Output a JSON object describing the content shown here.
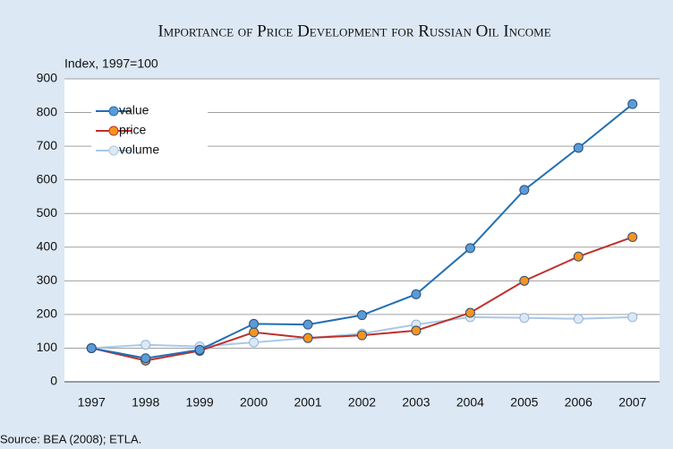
{
  "chart_data": {
    "type": "line",
    "title": "Importance of Price Development for Russian Oil Income",
    "y_label": "Index, 1997=100",
    "source": "Source: BEA (2008); ETLA.",
    "categories": [
      "1997",
      "1998",
      "1999",
      "2000",
      "2001",
      "2002",
      "2003",
      "2004",
      "2005",
      "2006",
      "2007"
    ],
    "series": [
      {
        "name": "value",
        "color": "#1f6fb5",
        "marker_color": "#5b9bd5",
        "values": [
          100,
          70,
          95,
          172,
          170,
          198,
          260,
          397,
          570,
          695,
          825
        ]
      },
      {
        "name": "price",
        "color": "#c0302b",
        "marker_color": "#f7941d",
        "values": [
          100,
          63,
          92,
          147,
          130,
          138,
          152,
          205,
          300,
          372,
          430
        ]
      },
      {
        "name": "volume",
        "color": "#a9c8e8",
        "marker_color": "#dce9f5",
        "values": [
          100,
          110,
          105,
          117,
          130,
          143,
          170,
          192,
          190,
          187,
          192
        ]
      }
    ],
    "ylim": [
      0,
      900
    ],
    "yticks": [
      0,
      100,
      200,
      300,
      400,
      500,
      600,
      700,
      800,
      900
    ],
    "grid": true,
    "legend": "upper left"
  }
}
